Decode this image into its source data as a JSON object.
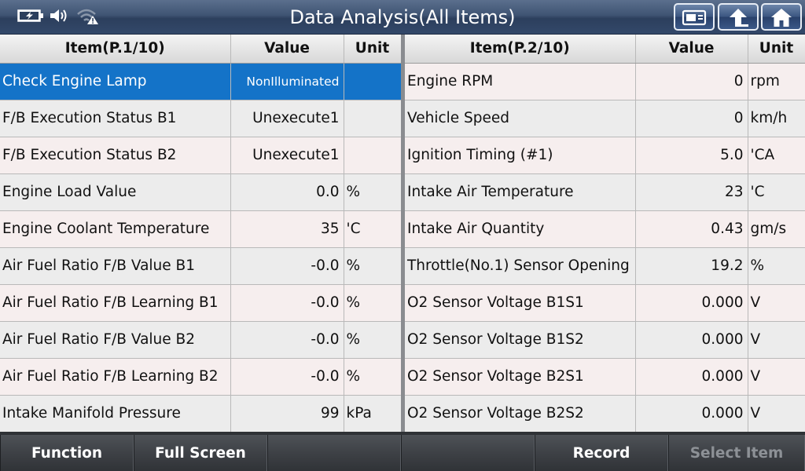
{
  "header": {
    "title": "Data Analysis(All Items)",
    "status_icons": [
      "battery-charging-icon",
      "speaker-icon",
      "wifi-warning-icon"
    ],
    "buttons": [
      "camera-icon",
      "up-arrow-icon",
      "home-icon"
    ]
  },
  "left_table": {
    "headers": {
      "item": "Item(P.1/10)",
      "value": "Value",
      "unit": "Unit"
    },
    "rows": [
      {
        "item": "Check Engine Lamp",
        "value": "NonIlluminated",
        "unit": ""
      },
      {
        "item": "F/B Execution Status B1",
        "value": "Unexecute1",
        "unit": ""
      },
      {
        "item": "F/B Execution Status B2",
        "value": "Unexecute1",
        "unit": ""
      },
      {
        "item": "Engine Load Value",
        "value": "0.0",
        "unit": "%"
      },
      {
        "item": "Engine Coolant Temperature",
        "value": "35",
        "unit": "'C"
      },
      {
        "item": "Air Fuel Ratio F/B Value B1",
        "value": "-0.0",
        "unit": "%"
      },
      {
        "item": "Air Fuel Ratio F/B Learning B1",
        "value": "-0.0",
        "unit": "%"
      },
      {
        "item": "Air Fuel Ratio F/B Value B2",
        "value": "-0.0",
        "unit": "%"
      },
      {
        "item": "Air Fuel Ratio F/B Learning B2",
        "value": "-0.0",
        "unit": "%"
      },
      {
        "item": "Intake Manifold Pressure",
        "value": "99",
        "unit": "kPa"
      }
    ]
  },
  "right_table": {
    "headers": {
      "item": "Item(P.2/10)",
      "value": "Value",
      "unit": "Unit"
    },
    "rows": [
      {
        "item": "Engine RPM",
        "value": "0",
        "unit": "rpm"
      },
      {
        "item": "Vehicle Speed",
        "value": "0",
        "unit": "km/h"
      },
      {
        "item": "Ignition Timing (#1)",
        "value": "5.0",
        "unit": "'CA"
      },
      {
        "item": "Intake Air Temperature",
        "value": "23",
        "unit": "'C"
      },
      {
        "item": "Intake Air Quantity",
        "value": "0.43",
        "unit": "gm/s"
      },
      {
        "item": "Throttle(No.1) Sensor Opening",
        "value": "19.2",
        "unit": "%"
      },
      {
        "item": "O2 Sensor Voltage B1S1",
        "value": "0.000",
        "unit": "V"
      },
      {
        "item": "O2 Sensor Voltage B1S2",
        "value": "0.000",
        "unit": "V"
      },
      {
        "item": "O2 Sensor Voltage B2S1",
        "value": "0.000",
        "unit": "V"
      },
      {
        "item": "O2 Sensor Voltage B2S2",
        "value": "0.000",
        "unit": "V"
      }
    ]
  },
  "footer": {
    "buttons": [
      {
        "label": "Function",
        "enabled": true
      },
      {
        "label": "Full Screen",
        "enabled": true
      },
      {
        "label": "",
        "enabled": true
      },
      {
        "label": "",
        "enabled": true
      },
      {
        "label": "Record",
        "enabled": true
      },
      {
        "label": "Select Item",
        "enabled": false
      }
    ]
  },
  "colors": {
    "selected_row": "#1473c8",
    "header_bar": "#3f5473",
    "footer_bar": "#3e4146"
  }
}
